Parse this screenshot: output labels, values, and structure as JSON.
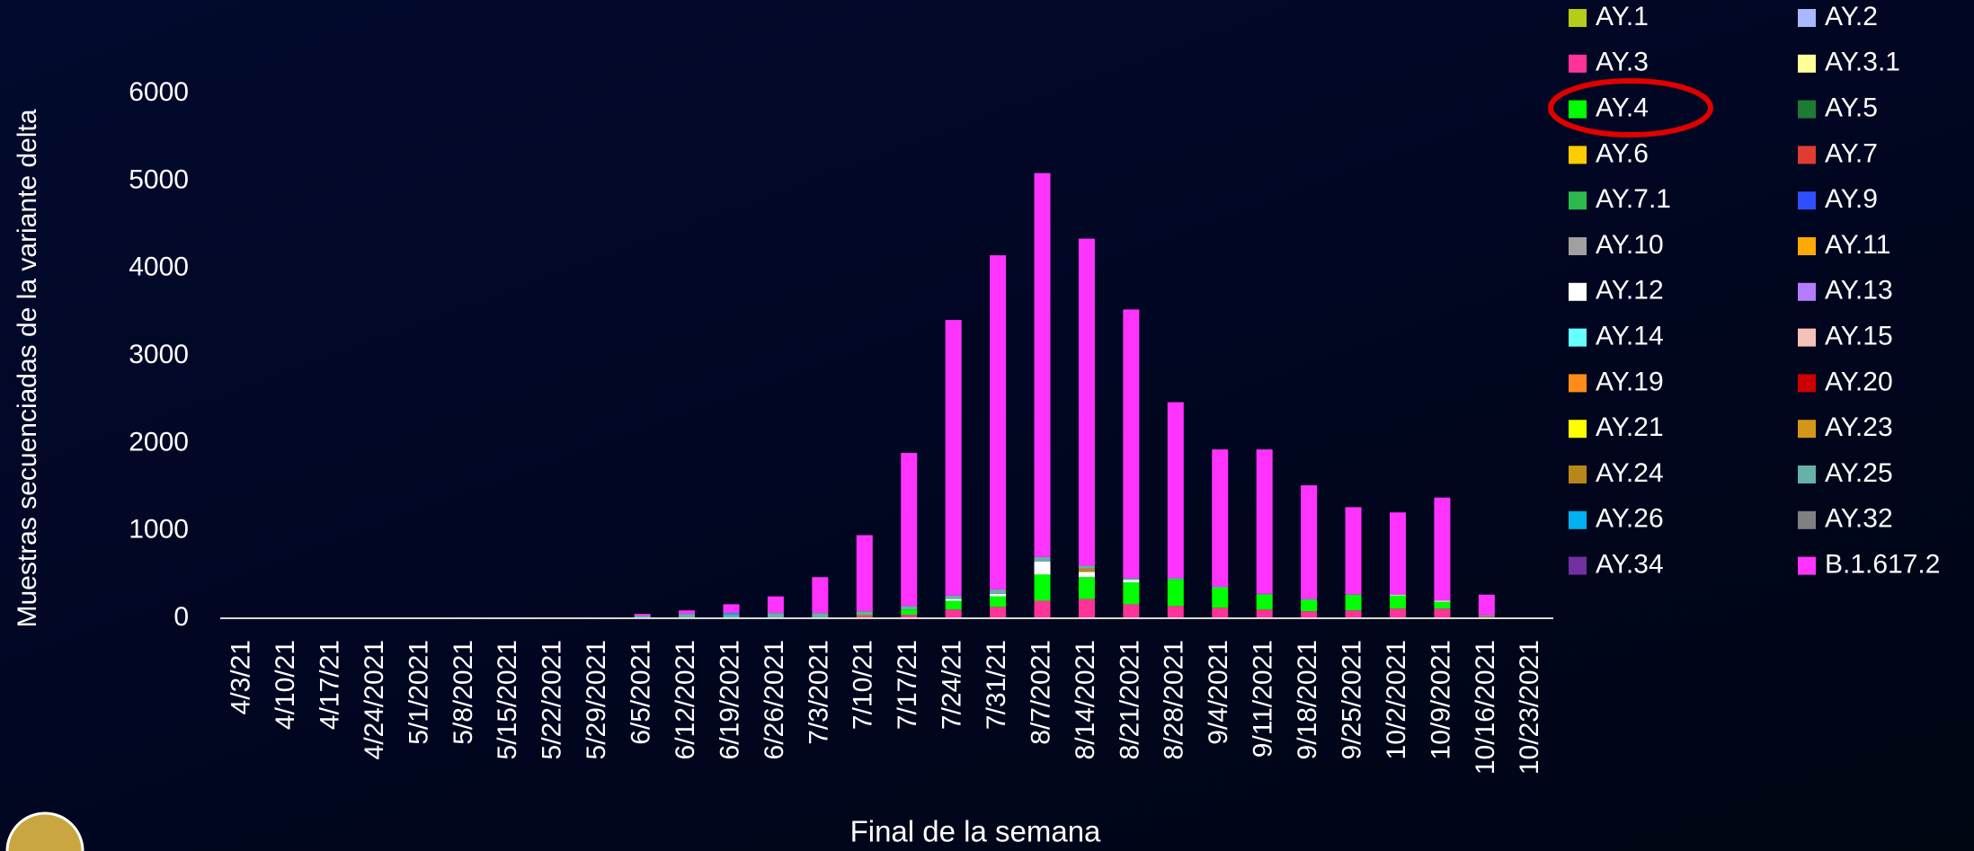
{
  "chart_data": {
    "type": "stacked_bar",
    "xlabel": "Final de la semana",
    "ylabel": "Muestras secuenciadas de la variante delta",
    "categories": [
      "4/3/21",
      "4/10/21",
      "4/17/21",
      "4/24/2021",
      "5/1/2021",
      "5/8/2021",
      "5/15/2021",
      "5/22/2021",
      "5/29/2021",
      "6/5/2021",
      "6/12/2021",
      "6/19/2021",
      "6/26/2021",
      "7/3/2021",
      "7/10/21",
      "7/17/21",
      "7/24/21",
      "7/31/21",
      "8/7/2021",
      "8/14/2021",
      "8/21/2021",
      "8/28/2021",
      "9/4/2021",
      "9/11/2021",
      "9/18/2021",
      "9/25/2021",
      "10/2/2021",
      "10/9/2021",
      "10/16/2021",
      "10/23/2021"
    ],
    "ylim": [
      0,
      6000
    ],
    "yticks": [
      0,
      1000,
      2000,
      3000,
      4000,
      5000,
      6000
    ],
    "series": [
      {
        "name": "AY.1",
        "color": "#b5cc18",
        "values": [
          0,
          0,
          0,
          0,
          0,
          0,
          0,
          0,
          0,
          0,
          0,
          0,
          0,
          0,
          0,
          0,
          0,
          0,
          0,
          0,
          0,
          0,
          0,
          0,
          0,
          0,
          0,
          0,
          0,
          0
        ]
      },
      {
        "name": "AY.2",
        "color": "#a9b8ff",
        "values": [
          0,
          0,
          0,
          0,
          0,
          0,
          0,
          0,
          0,
          0,
          0,
          0,
          0,
          0,
          0,
          0,
          0,
          0,
          0,
          0,
          0,
          0,
          0,
          0,
          0,
          0,
          0,
          0,
          0,
          0
        ]
      },
      {
        "name": "AY.3",
        "color": "#ff3399",
        "values": [
          0,
          0,
          0,
          0,
          0,
          0,
          0,
          0,
          0,
          0,
          0,
          0,
          0,
          0,
          20,
          40,
          100,
          130,
          200,
          220,
          160,
          140,
          120,
          100,
          80,
          90,
          110,
          110,
          20,
          0
        ]
      },
      {
        "name": "AY.3.1",
        "color": "#ffff99",
        "values": [
          0,
          0,
          0,
          0,
          0,
          0,
          0,
          0,
          0,
          0,
          0,
          0,
          0,
          0,
          0,
          0,
          0,
          0,
          0,
          0,
          0,
          0,
          0,
          0,
          0,
          0,
          0,
          0,
          0,
          0
        ]
      },
      {
        "name": "AY.4",
        "color": "#00ff00",
        "values": [
          0,
          0,
          0,
          0,
          0,
          0,
          0,
          0,
          0,
          0,
          0,
          0,
          0,
          0,
          0,
          60,
          100,
          120,
          300,
          250,
          250,
          300,
          230,
          170,
          130,
          180,
          150,
          80,
          10,
          0
        ]
      },
      {
        "name": "AY.5",
        "color": "#1e7b34",
        "values": [
          0,
          0,
          0,
          0,
          0,
          0,
          0,
          0,
          0,
          0,
          0,
          0,
          0,
          0,
          0,
          0,
          0,
          0,
          0,
          0,
          0,
          0,
          0,
          0,
          0,
          0,
          0,
          0,
          0,
          0
        ]
      },
      {
        "name": "AY.6",
        "color": "#ffcc00",
        "values": [
          0,
          0,
          0,
          0,
          0,
          0,
          0,
          0,
          0,
          0,
          0,
          0,
          0,
          0,
          0,
          0,
          0,
          0,
          0,
          0,
          0,
          0,
          0,
          0,
          0,
          0,
          0,
          0,
          0,
          0
        ]
      },
      {
        "name": "AY.7",
        "color": "#e03c31",
        "values": [
          0,
          0,
          0,
          0,
          0,
          0,
          0,
          0,
          0,
          0,
          0,
          0,
          0,
          0,
          0,
          0,
          0,
          0,
          0,
          0,
          0,
          0,
          0,
          0,
          0,
          0,
          0,
          0,
          0,
          0
        ]
      },
      {
        "name": "AY.7.1",
        "color": "#2db84d",
        "values": [
          0,
          0,
          0,
          0,
          0,
          0,
          0,
          0,
          0,
          0,
          0,
          0,
          0,
          0,
          0,
          0,
          0,
          0,
          0,
          0,
          0,
          0,
          0,
          0,
          0,
          0,
          0,
          0,
          0,
          0
        ]
      },
      {
        "name": "AY.9",
        "color": "#2f4fff",
        "values": [
          0,
          0,
          0,
          0,
          0,
          0,
          0,
          0,
          0,
          0,
          0,
          0,
          0,
          0,
          0,
          0,
          0,
          0,
          0,
          0,
          0,
          0,
          0,
          0,
          0,
          0,
          0,
          0,
          0,
          0
        ]
      },
      {
        "name": "AY.10",
        "color": "#a0a0a0",
        "values": [
          0,
          0,
          0,
          0,
          0,
          0,
          0,
          0,
          0,
          0,
          0,
          0,
          0,
          0,
          0,
          0,
          0,
          0,
          0,
          0,
          0,
          0,
          0,
          0,
          0,
          0,
          0,
          0,
          0,
          0
        ]
      },
      {
        "name": "AY.11",
        "color": "#ffaa00",
        "values": [
          0,
          0,
          0,
          0,
          0,
          0,
          0,
          0,
          0,
          0,
          0,
          0,
          0,
          0,
          0,
          0,
          0,
          0,
          0,
          0,
          0,
          0,
          0,
          0,
          0,
          0,
          0,
          0,
          0,
          0
        ]
      },
      {
        "name": "AY.12",
        "color": "#ffffff",
        "values": [
          0,
          0,
          0,
          0,
          0,
          0,
          0,
          0,
          0,
          0,
          0,
          0,
          0,
          0,
          0,
          0,
          20,
          30,
          150,
          60,
          30,
          0,
          0,
          0,
          0,
          0,
          10,
          10,
          0,
          0
        ]
      },
      {
        "name": "AY.13",
        "color": "#b57cff",
        "values": [
          0,
          0,
          0,
          0,
          0,
          0,
          0,
          0,
          0,
          0,
          0,
          0,
          0,
          0,
          0,
          0,
          0,
          0,
          0,
          0,
          0,
          0,
          0,
          0,
          0,
          0,
          0,
          0,
          0,
          0
        ]
      },
      {
        "name": "AY.14",
        "color": "#66ffff",
        "values": [
          0,
          0,
          0,
          0,
          0,
          0,
          0,
          0,
          0,
          0,
          0,
          0,
          0,
          0,
          0,
          0,
          0,
          0,
          0,
          0,
          0,
          0,
          0,
          0,
          0,
          0,
          0,
          0,
          0,
          0
        ]
      },
      {
        "name": "AY.15",
        "color": "#f4c2b8",
        "values": [
          0,
          0,
          0,
          0,
          0,
          0,
          0,
          0,
          0,
          0,
          0,
          0,
          0,
          0,
          0,
          0,
          0,
          0,
          0,
          0,
          0,
          0,
          0,
          0,
          0,
          0,
          0,
          0,
          0,
          0
        ]
      },
      {
        "name": "AY.19",
        "color": "#ff8c1a",
        "values": [
          0,
          0,
          0,
          0,
          0,
          0,
          0,
          0,
          0,
          0,
          0,
          0,
          0,
          0,
          0,
          0,
          0,
          0,
          0,
          0,
          0,
          0,
          0,
          0,
          0,
          0,
          0,
          0,
          0,
          0
        ]
      },
      {
        "name": "AY.20",
        "color": "#cc0000",
        "values": [
          0,
          0,
          0,
          0,
          0,
          0,
          0,
          0,
          0,
          0,
          0,
          0,
          0,
          0,
          0,
          0,
          0,
          0,
          0,
          0,
          0,
          0,
          0,
          0,
          0,
          0,
          0,
          0,
          0,
          0
        ]
      },
      {
        "name": "AY.21",
        "color": "#ffff00",
        "values": [
          0,
          0,
          0,
          0,
          0,
          0,
          0,
          0,
          0,
          0,
          0,
          0,
          0,
          0,
          0,
          0,
          0,
          0,
          0,
          0,
          0,
          0,
          0,
          0,
          0,
          0,
          0,
          0,
          0,
          0
        ]
      },
      {
        "name": "AY.23",
        "color": "#d4961a",
        "values": [
          0,
          0,
          0,
          0,
          0,
          0,
          0,
          0,
          0,
          0,
          0,
          0,
          0,
          0,
          0,
          0,
          0,
          0,
          0,
          0,
          0,
          0,
          0,
          0,
          0,
          0,
          0,
          0,
          0,
          0
        ]
      },
      {
        "name": "AY.24",
        "color": "#b8861b",
        "values": [
          0,
          0,
          0,
          0,
          0,
          0,
          0,
          0,
          0,
          0,
          0,
          0,
          0,
          0,
          20,
          0,
          0,
          0,
          0,
          40,
          0,
          0,
          0,
          0,
          0,
          0,
          0,
          0,
          0,
          0
        ]
      },
      {
        "name": "AY.25",
        "color": "#66b2a8",
        "values": [
          0,
          0,
          0,
          0,
          0,
          0,
          0,
          0,
          0,
          30,
          50,
          40,
          60,
          60,
          40,
          40,
          40,
          50,
          50,
          30,
          20,
          20,
          10,
          10,
          10,
          0,
          0,
          0,
          0,
          0
        ]
      },
      {
        "name": "AY.26",
        "color": "#00b0f0",
        "values": [
          0,
          0,
          0,
          0,
          0,
          0,
          0,
          0,
          0,
          0,
          0,
          20,
          0,
          0,
          0,
          0,
          0,
          0,
          0,
          0,
          0,
          0,
          0,
          0,
          0,
          0,
          0,
          0,
          0,
          0
        ]
      },
      {
        "name": "AY.32",
        "color": "#808080",
        "values": [
          0,
          0,
          0,
          0,
          0,
          0,
          0,
          0,
          0,
          0,
          0,
          0,
          0,
          0,
          0,
          0,
          0,
          0,
          0,
          0,
          0,
          0,
          0,
          0,
          0,
          0,
          0,
          0,
          0,
          0
        ]
      },
      {
        "name": "AY.34",
        "color": "#7030a0",
        "values": [
          0,
          0,
          0,
          0,
          0,
          0,
          0,
          0,
          0,
          0,
          0,
          0,
          0,
          0,
          0,
          0,
          0,
          0,
          0,
          0,
          0,
          0,
          0,
          0,
          0,
          0,
          0,
          0,
          0,
          0
        ]
      },
      {
        "name": "B.1.617.2",
        "color": "#ff33ff",
        "values": [
          0,
          0,
          0,
          0,
          0,
          0,
          0,
          0,
          10,
          20,
          40,
          100,
          190,
          410,
          870,
          1750,
          3150,
          3820,
          4390,
          3740,
          3070,
          2010,
          1570,
          1650,
          1300,
          1000,
          940,
          1180,
          240,
          0
        ]
      }
    ]
  }
}
